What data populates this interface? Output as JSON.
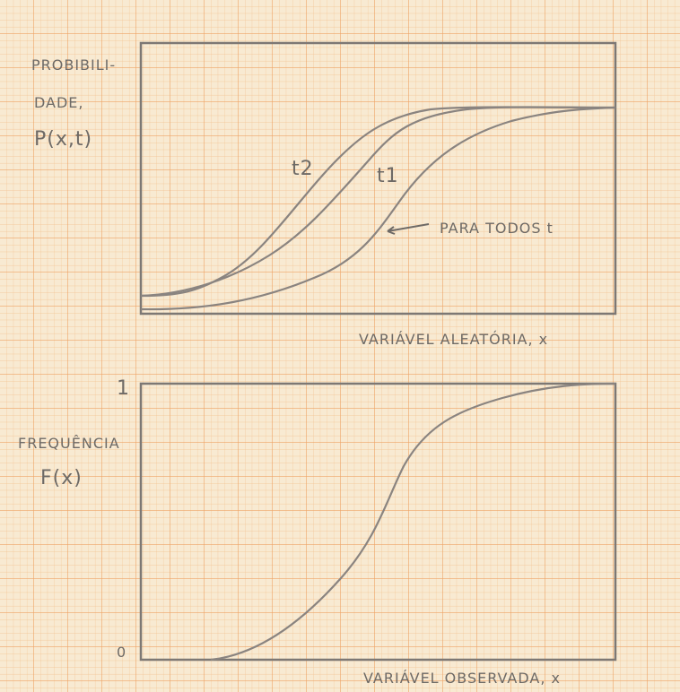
{
  "top_panel": {
    "y_label": [
      "PROBIBILI-",
      "DADE,",
      "P(x,t)"
    ],
    "x_label": "VARIÁVEL ALEATÓRIA, x",
    "curve_labels": [
      "t2",
      "t1"
    ],
    "annotation": "PARA TODOS t"
  },
  "bottom_panel": {
    "y_label": [
      "FREQUÊNCIA",
      "F(x)"
    ],
    "y_ticks": [
      "1",
      "0"
    ],
    "x_label": "VARIÁVEL OBSERVADA, x"
  }
}
